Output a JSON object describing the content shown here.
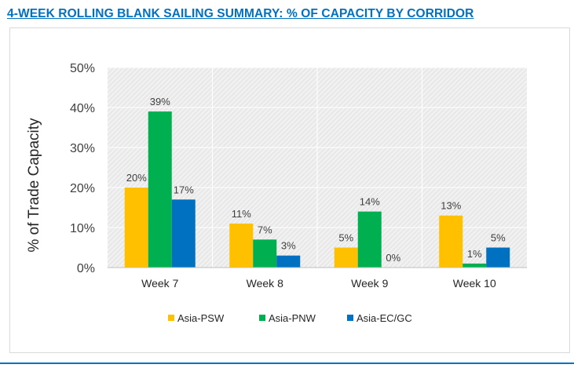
{
  "page": {
    "title": "4-WEEK ROLLING BLANK SAILING SUMMARY:  % OF CAPACITY BY CORRIDOR"
  },
  "colors": {
    "title": "#0070c0",
    "plot_background": "#e9e9e9",
    "gridline": "#ffffff"
  },
  "chart_data": {
    "type": "bar",
    "title": "4-WEEK ROLLING BLANK SAILING SUMMARY:  % OF CAPACITY BY CORRIDOR",
    "xlabel": "",
    "ylabel": "% of Trade Capacity",
    "ylim": [
      0,
      50
    ],
    "yticks": [
      0,
      10,
      20,
      30,
      40,
      50
    ],
    "ytick_labels": [
      "0%",
      "10%",
      "20%",
      "30%",
      "40%",
      "50%"
    ],
    "grid": true,
    "legend_position": "bottom",
    "categories": [
      "Week 7",
      "Week 8",
      "Week 9",
      "Week 10"
    ],
    "series": [
      {
        "name": "Asia-PSW",
        "color": "#ffc000",
        "values": [
          20,
          11,
          5,
          13
        ],
        "labels": [
          "20%",
          "11%",
          "5%",
          "13%"
        ]
      },
      {
        "name": "Asia-PNW",
        "color": "#00b050",
        "values": [
          39,
          7,
          14,
          1
        ],
        "labels": [
          "39%",
          "7%",
          "14%",
          "1%"
        ]
      },
      {
        "name": "Asia-EC/GC",
        "color": "#0070c0",
        "values": [
          17,
          3,
          0,
          5
        ],
        "labels": [
          "17%",
          "3%",
          "0%",
          "5%"
        ]
      }
    ]
  }
}
